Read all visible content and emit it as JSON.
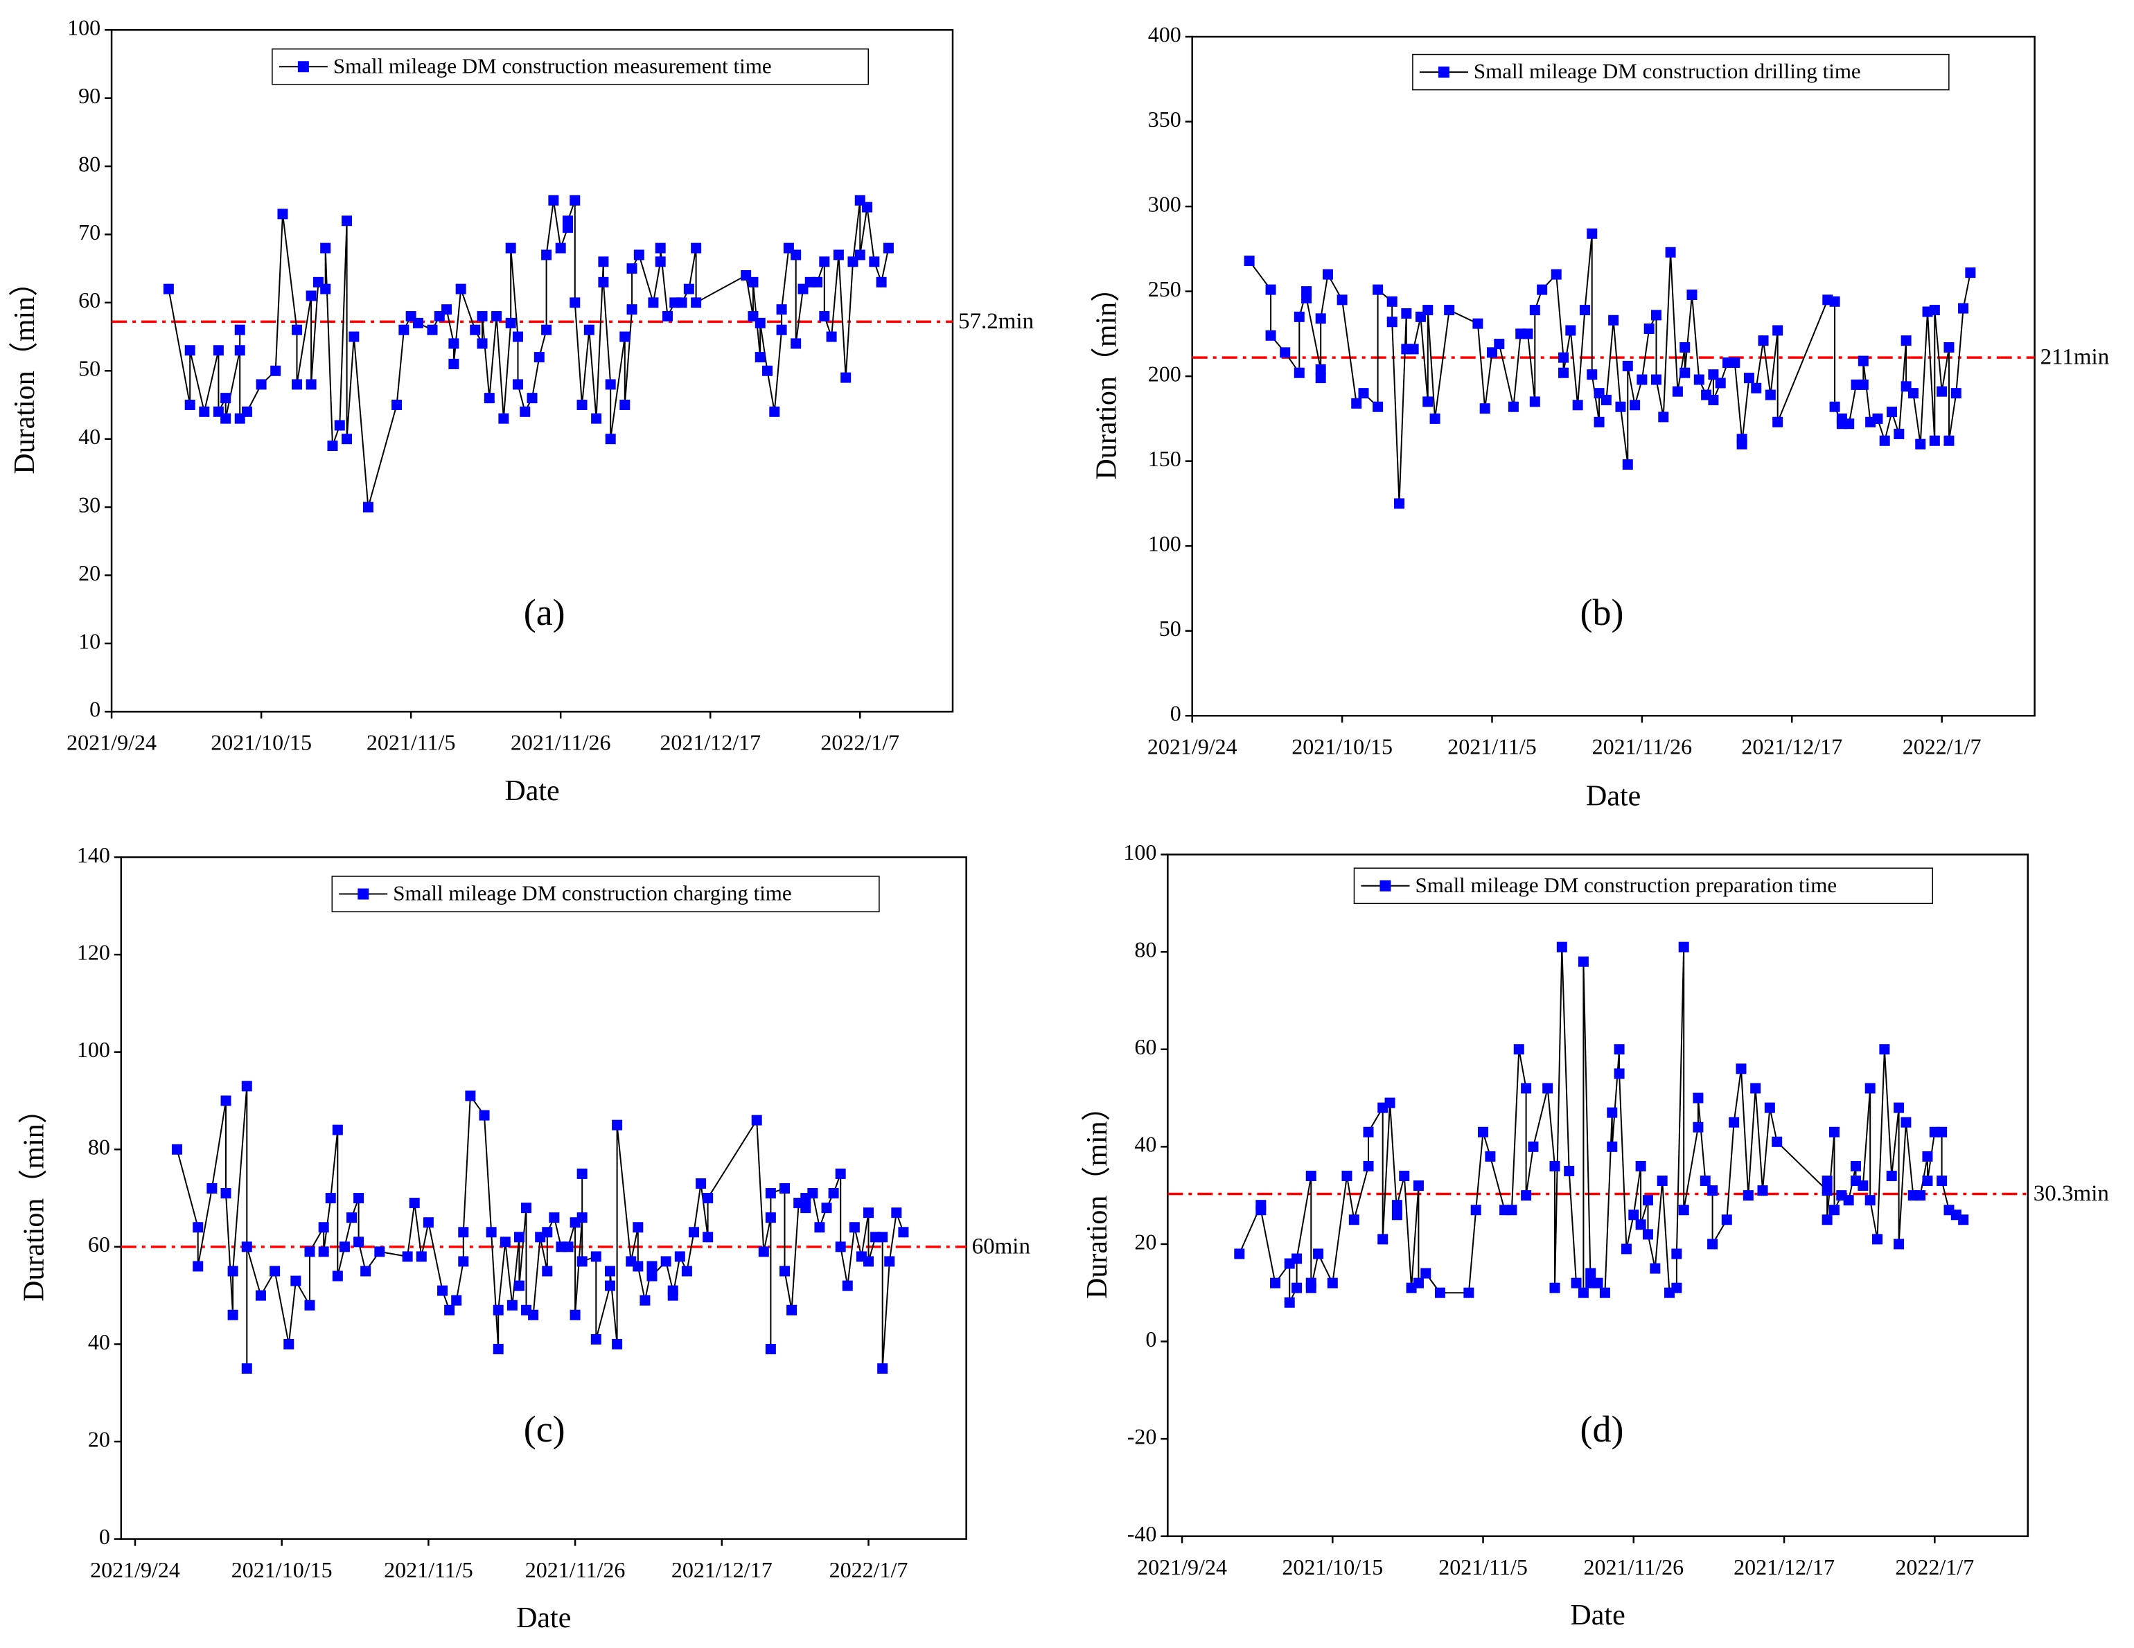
{
  "chart_data": [
    {
      "type": "line",
      "panel_label": "(a)",
      "xlabel": "Date",
      "ylabel": "Duration（min）",
      "x": [
        "2021/10/2",
        "2021/10/5",
        "2021/10/5",
        "2021/10/7",
        "2021/10/9",
        "2021/10/9",
        "2021/10/10",
        "2021/10/10",
        "2021/10/12",
        "2021/10/12",
        "2021/10/12",
        "2021/10/13",
        "2021/10/15",
        "2021/10/17",
        "2021/10/18",
        "2021/10/20",
        "2021/10/20",
        "2021/10/22",
        "2021/10/22",
        "2021/10/23",
        "2021/10/24",
        "2021/10/24",
        "2021/10/25",
        "2021/10/26",
        "2021/10/27",
        "2021/10/27",
        "2021/10/28",
        "2021/10/30",
        "2021/11/3",
        "2021/11/4",
        "2021/11/5",
        "2021/11/6",
        "2021/11/8",
        "2021/11/9",
        "2021/11/10",
        "2021/11/11",
        "2021/11/11",
        "2021/11/12",
        "2021/11/14",
        "2021/11/15",
        "2021/11/15",
        "2021/11/16",
        "2021/11/17",
        "2021/11/18",
        "2021/11/19",
        "2021/11/19",
        "2021/11/20",
        "2021/11/20",
        "2021/11/21",
        "2021/11/22",
        "2021/11/23",
        "2021/11/24",
        "2021/11/24",
        "2021/11/25",
        "2021/11/26",
        "2021/11/27",
        "2021/11/27",
        "2021/11/28",
        "2021/11/28",
        "2021/11/29",
        "2021/11/30",
        "2021/12/1",
        "2021/12/2",
        "2021/12/2",
        "2021/12/3",
        "2021/12/3",
        "2021/12/5",
        "2021/12/5",
        "2021/12/6",
        "2021/12/6",
        "2021/12/7",
        "2021/12/9",
        "2021/12/10",
        "2021/12/10",
        "2021/12/11",
        "2021/12/12",
        "2021/12/13",
        "2021/12/14",
        "2021/12/15",
        "2021/12/15",
        "2021/12/22",
        "2021/12/23",
        "2021/12/23",
        "2021/12/24",
        "2021/12/24",
        "2021/12/25",
        "2021/12/26",
        "2021/12/27",
        "2021/12/27",
        "2021/12/28",
        "2021/12/29",
        "2021/12/29",
        "2021/12/30",
        "2021/12/31",
        "2022/1/1",
        "2022/1/2",
        "2022/1/2",
        "2022/1/3",
        "2022/1/4",
        "2022/1/5",
        "2022/1/6",
        "2022/1/7",
        "2022/1/7",
        "2022/1/8",
        "2022/1/9",
        "2022/1/10",
        "2022/1/11"
      ],
      "series": [
        {
          "name": "Small mileage DM construction measurement time",
          "color": "#0000ff",
          "values": [
            62,
            45,
            53,
            44,
            53,
            44,
            46,
            43,
            53,
            56,
            43,
            44,
            48,
            50,
            73,
            56,
            48,
            61,
            48,
            63,
            62,
            68,
            39,
            42,
            72,
            40,
            55,
            30,
            45,
            56,
            58,
            57,
            56,
            58,
            59,
            54,
            51,
            62,
            56,
            54,
            58,
            46,
            58,
            43,
            57,
            68,
            55,
            48,
            44,
            46,
            52,
            56,
            67,
            75,
            68,
            71,
            72,
            75,
            60,
            45,
            56,
            43,
            66,
            63,
            48,
            40,
            55,
            45,
            59,
            65,
            67,
            60,
            66,
            68,
            58,
            60,
            60,
            62,
            68,
            60,
            64,
            58,
            63,
            52,
            57,
            50,
            44,
            56,
            59,
            68,
            67,
            54,
            62,
            63,
            63,
            66,
            58,
            55,
            67,
            49,
            66,
            75,
            67,
            74,
            66,
            63,
            68
          ]
        }
      ],
      "line_color": "#000000",
      "xlim": [
        "2021/9/24",
        "2022/1/20"
      ],
      "xticks": [
        "2021/9/24",
        "2021/10/15",
        "2021/11/5",
        "2021/11/26",
        "2021/12/17",
        "2022/1/7"
      ],
      "ylim": [
        0,
        100
      ],
      "yticks": [
        0,
        10,
        20,
        30,
        40,
        50,
        60,
        70,
        80,
        90,
        100
      ],
      "reference": {
        "value": 57.2,
        "label": "57.2min",
        "color": "#ff0000"
      }
    },
    {
      "type": "line",
      "panel_label": "(b)",
      "xlabel": "Date",
      "ylabel": "Duration（min）",
      "x": [
        "2021/10/2",
        "2021/10/5",
        "2021/10/5",
        "2021/10/7",
        "2021/10/9",
        "2021/10/9",
        "2021/10/10",
        "2021/10/10",
        "2021/10/12",
        "2021/10/12",
        "2021/10/12",
        "2021/10/13",
        "2021/10/15",
        "2021/10/17",
        "2021/10/18",
        "2021/10/20",
        "2021/10/20",
        "2021/10/22",
        "2021/10/22",
        "2021/10/23",
        "2021/10/24",
        "2021/10/24",
        "2021/10/25",
        "2021/10/26",
        "2021/10/27",
        "2021/10/27",
        "2021/10/28",
        "2021/10/30",
        "2021/11/3",
        "2021/11/4",
        "2021/11/5",
        "2021/11/6",
        "2021/11/8",
        "2021/11/9",
        "2021/11/10",
        "2021/11/11",
        "2021/11/11",
        "2021/11/12",
        "2021/11/14",
        "2021/11/15",
        "2021/11/15",
        "2021/11/16",
        "2021/11/17",
        "2021/11/18",
        "2021/11/19",
        "2021/11/19",
        "2021/11/20",
        "2021/11/20",
        "2021/11/21",
        "2021/11/22",
        "2021/11/23",
        "2021/11/24",
        "2021/11/24",
        "2021/11/25",
        "2021/11/26",
        "2021/11/27",
        "2021/11/28",
        "2021/11/28",
        "2021/11/29",
        "2021/11/30",
        "2021/12/1",
        "2021/12/2",
        "2021/12/2",
        "2021/12/3",
        "2021/12/4",
        "2021/12/5",
        "2021/12/6",
        "2021/12/6",
        "2021/12/7",
        "2021/12/8",
        "2021/12/9",
        "2021/12/10",
        "2021/12/10",
        "2021/12/11",
        "2021/12/12",
        "2021/12/13",
        "2021/12/14",
        "2021/12/15",
        "2021/12/15",
        "2021/12/22",
        "2021/12/23",
        "2021/12/23",
        "2021/12/24",
        "2021/12/24",
        "2021/12/25",
        "2021/12/26",
        "2021/12/27",
        "2021/12/27",
        "2021/12/28",
        "2021/12/29",
        "2021/12/30",
        "2021/12/31",
        "2022/1/1",
        "2022/1/2",
        "2022/1/2",
        "2022/1/3",
        "2022/1/4",
        "2022/1/5",
        "2022/1/6",
        "2022/1/6",
        "2022/1/7",
        "2022/1/8",
        "2022/1/8",
        "2022/1/9",
        "2022/1/10",
        "2022/1/11"
      ],
      "series": [
        {
          "name": "Small mileage DM construction drilling time",
          "color": "#0000ff",
          "values": [
            268,
            251,
            224,
            214,
            202,
            235,
            250,
            246,
            204,
            199,
            234,
            260,
            245,
            184,
            190,
            182,
            251,
            244,
            232,
            125,
            237,
            216,
            216,
            235,
            185,
            239,
            175,
            239,
            231,
            181,
            214,
            219,
            182,
            225,
            225,
            185,
            239,
            251,
            260,
            211,
            202,
            227,
            183,
            239,
            284,
            201,
            173,
            190,
            186,
            233,
            182,
            148,
            206,
            183,
            198,
            228,
            236,
            198,
            176,
            273,
            191,
            217,
            202,
            248,
            198,
            189,
            201,
            186,
            196,
            208,
            208,
            163,
            160,
            199,
            193,
            221,
            189,
            227,
            173,
            245,
            244,
            182,
            172,
            175,
            172,
            195,
            195,
            209,
            173,
            175,
            162,
            179,
            166,
            221,
            194,
            190,
            160,
            238,
            162,
            239,
            191,
            217,
            162,
            190,
            240,
            261
          ]
        }
      ],
      "line_color": "#000000",
      "xlim": [
        "2021/9/24",
        "2022/1/20"
      ],
      "xticks": [
        "2021/9/24",
        "2021/10/15",
        "2021/11/5",
        "2021/11/26",
        "2021/12/17",
        "2022/1/7"
      ],
      "ylim": [
        0,
        400
      ],
      "yticks": [
        0,
        50,
        100,
        150,
        200,
        250,
        300,
        350,
        400
      ],
      "reference": {
        "value": 211,
        "label": "211min",
        "color": "#ff0000"
      }
    },
    {
      "type": "line",
      "panel_label": "(c)",
      "xlabel": "Date",
      "ylabel": "Duration（min）",
      "x": [
        "2021/9/30",
        "2021/10/3",
        "2021/10/3",
        "2021/10/5",
        "2021/10/7",
        "2021/10/7",
        "2021/10/8",
        "2021/10/8",
        "2021/10/10",
        "2021/10/10",
        "2021/10/10",
        "2021/10/12",
        "2021/10/14",
        "2021/10/16",
        "2021/10/17",
        "2021/10/19",
        "2021/10/19",
        "2021/10/21",
        "2021/10/21",
        "2021/10/22",
        "2021/10/23",
        "2021/10/23",
        "2021/10/24",
        "2021/10/25",
        "2021/10/26",
        "2021/10/26",
        "2021/10/27",
        "2021/10/29",
        "2021/11/2",
        "2021/11/3",
        "2021/11/4",
        "2021/11/5",
        "2021/11/7",
        "2021/11/8",
        "2021/11/9",
        "2021/11/10",
        "2021/11/10",
        "2021/11/11",
        "2021/11/13",
        "2021/11/14",
        "2021/11/15",
        "2021/11/15",
        "2021/11/16",
        "2021/11/17",
        "2021/11/18",
        "2021/11/18",
        "2021/11/19",
        "2021/11/19",
        "2021/11/20",
        "2021/11/21",
        "2021/11/22",
        "2021/11/22",
        "2021/11/23",
        "2021/11/24",
        "2021/11/25",
        "2021/11/26",
        "2021/11/26",
        "2021/11/27",
        "2021/11/27",
        "2021/11/27",
        "2021/11/29",
        "2021/11/29",
        "2021/12/1",
        "2021/12/1",
        "2021/12/2",
        "2021/12/2",
        "2021/12/4",
        "2021/12/5",
        "2021/12/5",
        "2021/12/6",
        "2021/12/7",
        "2021/12/7",
        "2021/12/9",
        "2021/12/10",
        "2021/12/10",
        "2021/12/11",
        "2021/12/12",
        "2021/12/13",
        "2021/12/14",
        "2021/12/15",
        "2021/12/15",
        "2021/12/22",
        "2021/12/23",
        "2021/12/24",
        "2021/12/24",
        "2021/12/24",
        "2021/12/26",
        "2021/12/26",
        "2021/12/27",
        "2021/12/28",
        "2021/12/29",
        "2021/12/29",
        "2021/12/30",
        "2021/12/31",
        "2022/1/1",
        "2022/1/2",
        "2022/1/3",
        "2022/1/3",
        "2022/1/4",
        "2022/1/5",
        "2022/1/6",
        "2022/1/7",
        "2022/1/7",
        "2022/1/8",
        "2022/1/9",
        "2022/1/9",
        "2022/1/10",
        "2022/1/11",
        "2022/1/12"
      ],
      "series": [
        {
          "name": "Small mileage DM construction charging time",
          "color": "#0000ff",
          "values": [
            80,
            64,
            56,
            72,
            90,
            71,
            46,
            55,
            93,
            35,
            60,
            50,
            55,
            40,
            53,
            48,
            59,
            64,
            59,
            70,
            84,
            54,
            60,
            66,
            70,
            61,
            55,
            59,
            58,
            69,
            58,
            65,
            51,
            47,
            49,
            57,
            63,
            91,
            87,
            63,
            39,
            47,
            61,
            48,
            62,
            52,
            68,
            47,
            46,
            62,
            55,
            63,
            66,
            60,
            60,
            65,
            46,
            66,
            75,
            57,
            58,
            41,
            52,
            55,
            40,
            85,
            57,
            64,
            56,
            49,
            56,
            54,
            57,
            51,
            50,
            58,
            55,
            63,
            73,
            62,
            70,
            86,
            59,
            66,
            39,
            71,
            72,
            55,
            47,
            69,
            68,
            70,
            71,
            64,
            68,
            71,
            75,
            60,
            52,
            64,
            58,
            67,
            57,
            62,
            62,
            35,
            57,
            67,
            63
          ]
        }
      ],
      "line_color": "#000000",
      "xlim": [
        "2021/9/22",
        "2022/1/21"
      ],
      "xticks": [
        "2021/9/24",
        "2021/10/15",
        "2021/11/5",
        "2021/11/26",
        "2021/12/17",
        "2022/1/7"
      ],
      "ylim": [
        0,
        140
      ],
      "yticks": [
        0,
        20,
        40,
        60,
        80,
        100,
        120,
        140
      ],
      "reference": {
        "value": 60,
        "label": "60min",
        "color": "#ff0000"
      }
    },
    {
      "type": "line",
      "panel_label": "(d)",
      "xlabel": "Date",
      "ylabel": "Duration（min）",
      "x": [
        "2021/10/2",
        "2021/10/5",
        "2021/10/5",
        "2021/10/7",
        "2021/10/9",
        "2021/10/9",
        "2021/10/10",
        "2021/10/10",
        "2021/10/12",
        "2021/10/12",
        "2021/10/12",
        "2021/10/13",
        "2021/10/15",
        "2021/10/17",
        "2021/10/18",
        "2021/10/20",
        "2021/10/20",
        "2021/10/22",
        "2021/10/22",
        "2021/10/23",
        "2021/10/24",
        "2021/10/24",
        "2021/10/25",
        "2021/10/26",
        "2021/10/27",
        "2021/10/27",
        "2021/10/28",
        "2021/10/30",
        "2021/11/3",
        "2021/11/4",
        "2021/11/5",
        "2021/11/6",
        "2021/11/8",
        "2021/11/9",
        "2021/11/10",
        "2021/11/11",
        "2021/11/11",
        "2021/11/12",
        "2021/11/14",
        "2021/11/15",
        "2021/11/15",
        "2021/11/16",
        "2021/11/17",
        "2021/11/18",
        "2021/11/19",
        "2021/11/19",
        "2021/11/20",
        "2021/11/20",
        "2021/11/21",
        "2021/11/22",
        "2021/11/23",
        "2021/11/23",
        "2021/11/24",
        "2021/11/24",
        "2021/11/25",
        "2021/11/26",
        "2021/11/27",
        "2021/11/27",
        "2021/11/28",
        "2021/11/28",
        "2021/11/29",
        "2021/11/30",
        "2021/12/1",
        "2021/12/2",
        "2021/12/2",
        "2021/12/3",
        "2021/12/3",
        "2021/12/5",
        "2021/12/5",
        "2021/12/6",
        "2021/12/7",
        "2021/12/7",
        "2021/12/9",
        "2021/12/10",
        "2021/12/11",
        "2021/12/12",
        "2021/12/13",
        "2021/12/14",
        "2021/12/15",
        "2021/12/16",
        "2021/12/23",
        "2021/12/23",
        "2021/12/23",
        "2021/12/24",
        "2021/12/24",
        "2021/12/25",
        "2021/12/26",
        "2021/12/27",
        "2021/12/27",
        "2021/12/28",
        "2021/12/29",
        "2021/12/29",
        "2021/12/30",
        "2021/12/31",
        "2022/1/1",
        "2022/1/2",
        "2022/1/2",
        "2022/1/3",
        "2022/1/4",
        "2022/1/5",
        "2022/1/6",
        "2022/1/6",
        "2022/1/7",
        "2022/1/8",
        "2022/1/8",
        "2022/1/9",
        "2022/1/10",
        "2022/1/11"
      ],
      "series": [
        {
          "name": "Small mileage DM construction preparation time",
          "color": "#0000ff",
          "values": [
            18,
            28,
            27,
            12,
            16,
            8,
            11,
            17,
            34,
            12,
            11,
            18,
            12,
            34,
            25,
            36,
            43,
            48,
            21,
            49,
            26,
            28,
            34,
            11,
            32,
            12,
            14,
            10,
            10,
            27,
            43,
            38,
            27,
            27,
            60,
            52,
            30,
            40,
            52,
            36,
            11,
            81,
            35,
            12,
            10,
            78,
            12,
            14,
            12,
            10,
            47,
            40,
            60,
            55,
            19,
            26,
            36,
            24,
            29,
            22,
            15,
            33,
            10,
            11,
            18,
            81,
            27,
            44,
            50,
            33,
            31,
            20,
            25,
            45,
            56,
            30,
            52,
            31,
            48,
            41,
            31,
            33,
            25,
            43,
            27,
            30,
            29,
            36,
            33,
            32,
            52,
            29,
            21,
            60,
            34,
            48,
            20,
            45,
            30,
            30,
            38,
            33,
            43,
            43,
            33,
            27,
            26,
            25
          ]
        }
      ],
      "line_color": "#000000",
      "xlim": [
        "2021/9/22",
        "2022/1/20"
      ],
      "xticks": [
        "2021/9/24",
        "2021/10/15",
        "2021/11/5",
        "2021/11/26",
        "2021/12/17",
        "2022/1/7"
      ],
      "ylim": [
        -40,
        100
      ],
      "yticks": [
        -40,
        -20,
        0,
        20,
        40,
        60,
        80,
        100
      ],
      "reference": {
        "value": 30.3,
        "label": "30.3min",
        "color": "#ff0000"
      }
    }
  ]
}
